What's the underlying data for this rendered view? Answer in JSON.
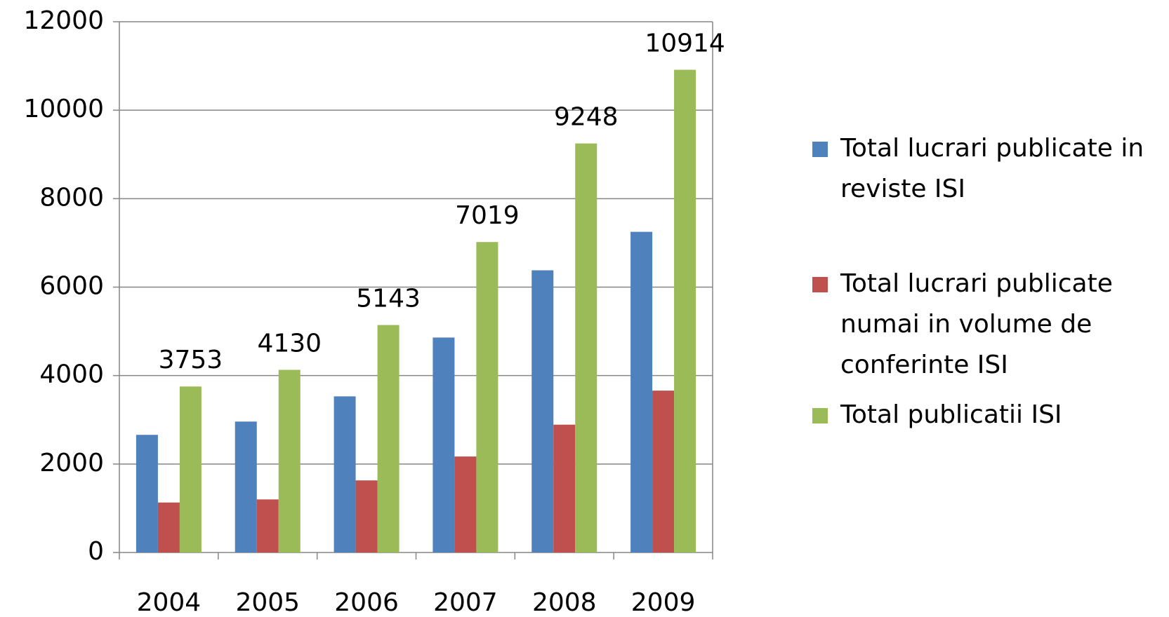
{
  "chart_data": {
    "type": "bar",
    "categories": [
      "2004",
      "2005",
      "2006",
      "2007",
      "2008",
      "2009"
    ],
    "series": [
      {
        "name": "Total lucrari publicate in reviste ISI",
        "color": "#4f81bd",
        "values": [
          2660,
          2960,
          3530,
          4860,
          6380,
          7250
        ]
      },
      {
        "name": "Total lucrari publicate numai in volume de conferinte ISI",
        "color": "#c0504d",
        "values": [
          1130,
          1200,
          1630,
          2170,
          2890,
          3660
        ]
      },
      {
        "name": "Total publicatii ISI",
        "color": "#9bbb59",
        "values": [
          3753,
          4130,
          5143,
          7019,
          9248,
          10914
        ],
        "show_labels": true
      }
    ],
    "ylim": [
      0,
      12000
    ],
    "yticks": [
      0,
      2000,
      4000,
      6000,
      8000,
      10000,
      12000
    ],
    "grid": true,
    "legend": "right"
  }
}
